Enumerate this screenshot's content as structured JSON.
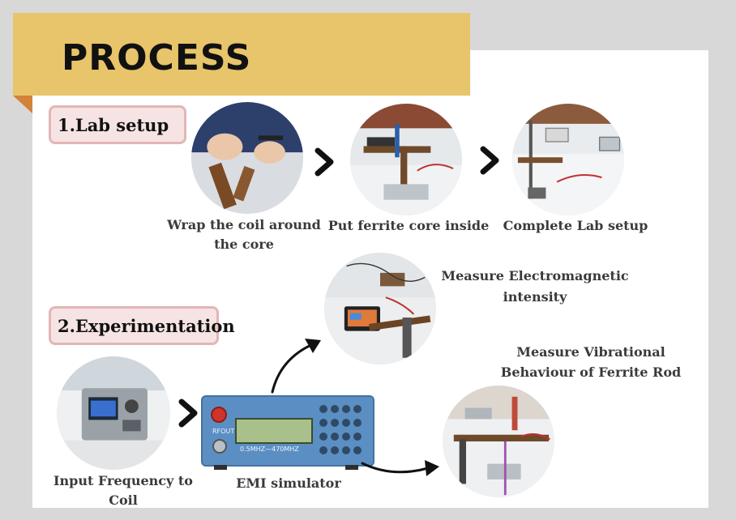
{
  "title": "PROCESS",
  "sections": {
    "lab_setup": "1.Lab setup",
    "experimentation": "2.Experimentation"
  },
  "captions": {
    "wrap_line1": "Wrap the coil around",
    "wrap_line2": "the core",
    "ferrite": "Put ferrite core inside",
    "complete": "Complete Lab setup",
    "measure_em_line1": "Measure Electromagnetic",
    "measure_em_line2": "intensity",
    "measure_vib_line1": "Measure Vibrational",
    "measure_vib_line2": "Behaviour of Ferrite Rod",
    "input_freq": "Input Frequency to Coil",
    "emi": "EMI simulator"
  },
  "device": {
    "port_label": "RFOUT",
    "range_label": "0.5MHZ—470MHZ"
  },
  "colors": {
    "banner": "#e8c46a",
    "banner_fold": "#d4823a",
    "label_fill": "#f6e4e4",
    "label_border": "#e3b6b6",
    "device_blue": "#5b8fc4"
  }
}
